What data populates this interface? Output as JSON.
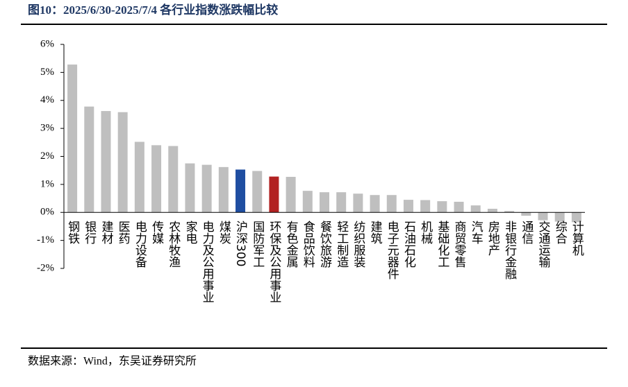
{
  "chart_data": {
    "type": "bar",
    "title": "图10：2025/6/30-2025/7/4 各行业指数涨跌幅比较",
    "source": "数据来源：Wind，东吴证券研究所",
    "categories": [
      "钢铁",
      "银行",
      "建材",
      "医药",
      "电力设备",
      "传媒",
      "农林牧渔",
      "家电",
      "电力及公用事业",
      "煤炭",
      "沪深300",
      "国防军工",
      "环保及公用事业",
      "有色金属",
      "食品饮料",
      "餐饮旅游",
      "轻工制造",
      "纺织服装",
      "建筑",
      "电子元器件",
      "石油石化",
      "机械",
      "基础化工",
      "商贸零售",
      "汽车",
      "房地产",
      "非银行金融",
      "通信",
      "交通运输",
      "综合",
      "计算机"
    ],
    "values": [
      5.28,
      3.78,
      3.62,
      3.58,
      2.52,
      2.4,
      2.37,
      1.75,
      1.7,
      1.62,
      1.53,
      1.48,
      1.28,
      1.27,
      0.77,
      0.72,
      0.72,
      0.67,
      0.62,
      0.62,
      0.45,
      0.44,
      0.4,
      0.38,
      0.25,
      0.13,
      0.05,
      -0.12,
      -0.28,
      -0.33,
      -0.35
    ],
    "colors": [
      "#bfbfbf",
      "#bfbfbf",
      "#bfbfbf",
      "#bfbfbf",
      "#bfbfbf",
      "#bfbfbf",
      "#bfbfbf",
      "#bfbfbf",
      "#bfbfbf",
      "#bfbfbf",
      "#1f4ea1",
      "#bfbfbf",
      "#b22222",
      "#bfbfbf",
      "#bfbfbf",
      "#bfbfbf",
      "#bfbfbf",
      "#bfbfbf",
      "#bfbfbf",
      "#bfbfbf",
      "#bfbfbf",
      "#bfbfbf",
      "#bfbfbf",
      "#bfbfbf",
      "#bfbfbf",
      "#bfbfbf",
      "#bfbfbf",
      "#bfbfbf",
      "#bfbfbf",
      "#bfbfbf",
      "#bfbfbf"
    ],
    "ylim": [
      -2,
      6
    ],
    "yticks": [
      {
        "value": -2,
        "label": "-2%"
      },
      {
        "value": -1,
        "label": "-1%"
      },
      {
        "value": 0,
        "label": "0%"
      },
      {
        "value": 1,
        "label": "1%"
      },
      {
        "value": 2,
        "label": "2%"
      },
      {
        "value": 3,
        "label": "3%"
      },
      {
        "value": 4,
        "label": "4%"
      },
      {
        "value": 5,
        "label": "5%"
      },
      {
        "value": 6,
        "label": "6%"
      }
    ],
    "grid": false
  }
}
